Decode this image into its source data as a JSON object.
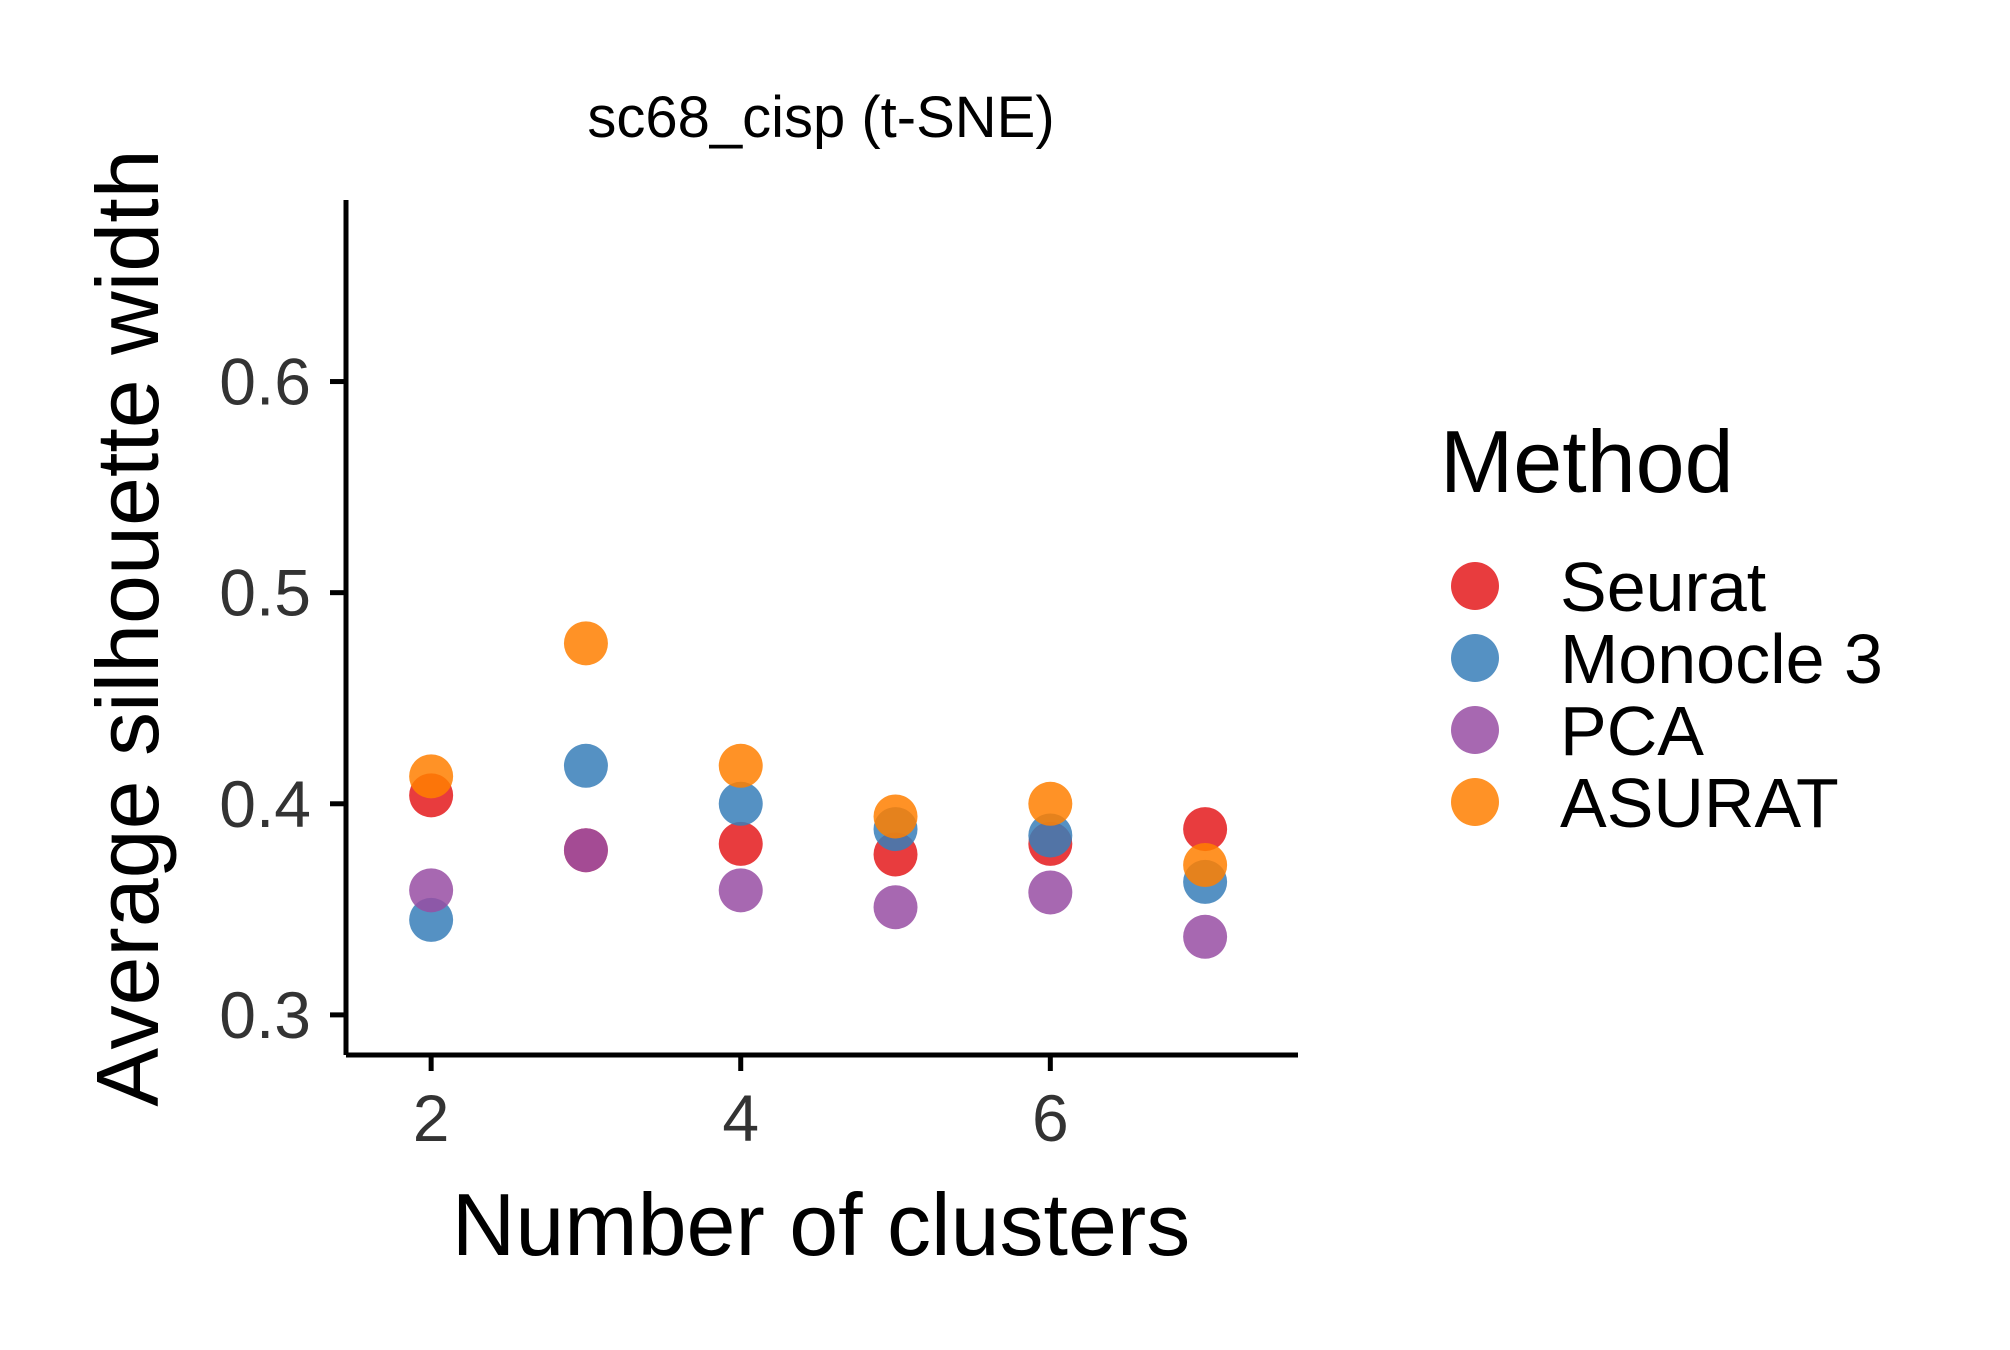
{
  "chart_data": {
    "type": "scatter",
    "title": "sc68_cisp (t-SNE)",
    "xlabel": "Number of clusters",
    "ylabel": "Average silhouette width",
    "xlim": [
      1.45,
      7.6
    ],
    "ylim": [
      0.281,
      0.686
    ],
    "xticks": [
      2,
      4,
      6
    ],
    "xtick_labels": [
      "2",
      "4",
      "6"
    ],
    "yticks": [
      0.3,
      0.4,
      0.5,
      0.6
    ],
    "ytick_labels": [
      "0.3",
      "0.4",
      "0.5",
      "0.6"
    ],
    "grid": false,
    "legend": {
      "title": "Method",
      "placement": "right"
    },
    "series": [
      {
        "name": "Seurat",
        "color": "#E41A1C",
        "x": [
          2,
          3,
          4,
          5,
          6,
          7
        ],
        "y": [
          0.404,
          0.378,
          0.381,
          0.376,
          0.381,
          0.388
        ]
      },
      {
        "name": "Monocle 3",
        "color": "#377EB8",
        "x": [
          2,
          3,
          4,
          5,
          6,
          7
        ],
        "y": [
          0.345,
          0.418,
          0.4,
          0.388,
          0.385,
          0.363
        ]
      },
      {
        "name": "PCA",
        "color": "#984EA3",
        "x": [
          2,
          3,
          4,
          5,
          6,
          7
        ],
        "y": [
          0.359,
          0.378,
          0.359,
          0.351,
          0.358,
          0.337
        ]
      },
      {
        "name": "ASURAT",
        "color": "#FF7F00",
        "x": [
          2,
          3,
          4,
          5,
          6,
          7
        ],
        "y": [
          0.413,
          0.476,
          0.418,
          0.394,
          0.4,
          0.371
        ]
      }
    ]
  }
}
